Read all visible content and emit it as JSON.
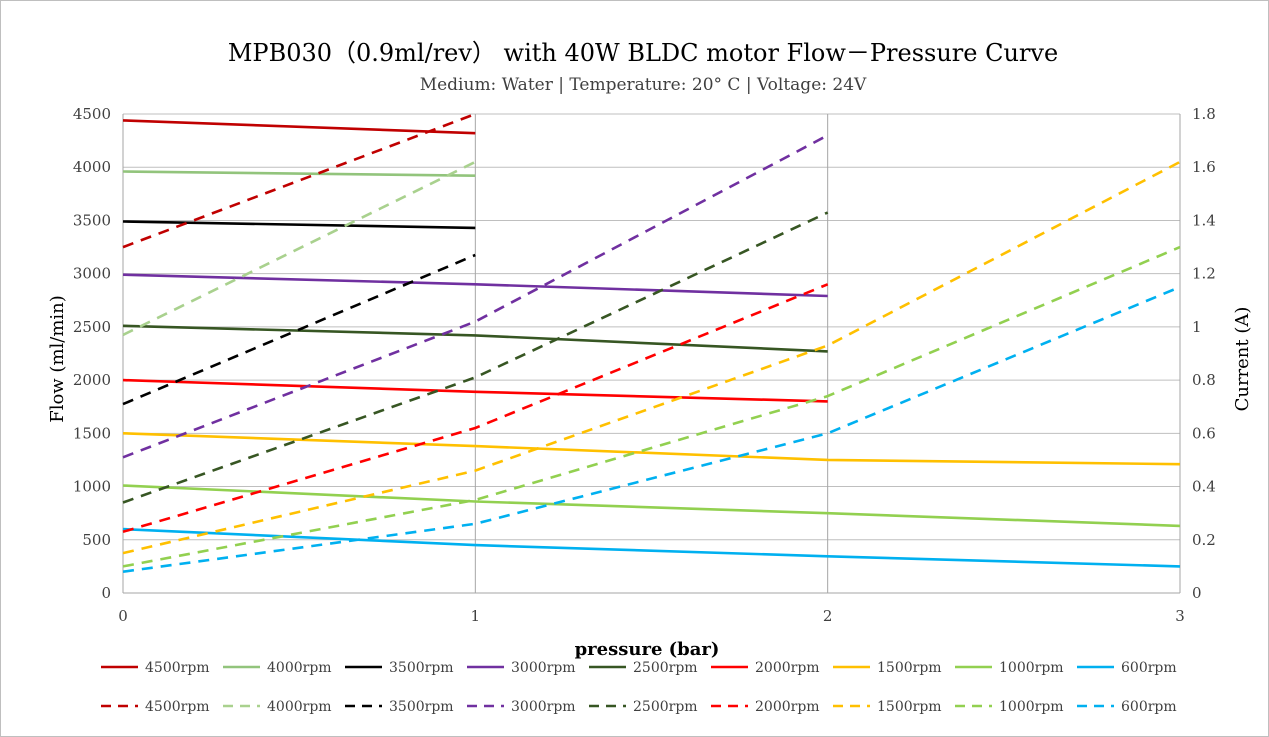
{
  "chart_data": {
    "type": "line",
    "title": "MPB030（0.9ml/rev） with 40W BLDC motor Flow－Pressure Curve",
    "subtitle": "Medium: Water | Temperature: 20° C | Voltage: 24V",
    "xlabel": "pressure (bar)",
    "ylabel": "Flow (ml/min)",
    "y2label": "Current (A)",
    "xlim": [
      0,
      3
    ],
    "ylim": [
      0,
      4500
    ],
    "y2lim": [
      0,
      1.8
    ],
    "x_ticks": [
      "0",
      "1",
      "2",
      "3"
    ],
    "y_ticks": [
      "0",
      "500",
      "1000",
      "1500",
      "2000",
      "2500",
      "3000",
      "3500",
      "4000",
      "4500"
    ],
    "y2_ticks": [
      "0",
      "0.2",
      "0.4",
      "0.6",
      "0.8",
      "1",
      "1.2",
      "1.4",
      "1.6",
      "1.8"
    ],
    "grid": true,
    "legend_position": "bottom",
    "series": [
      {
        "name": "4500rpm",
        "axis": "left",
        "style": "solid",
        "color": "#C00000",
        "x": [
          0,
          1
        ],
        "y": [
          4440,
          4320
        ]
      },
      {
        "name": "4000rpm",
        "axis": "left",
        "style": "solid",
        "color": "#92C47C",
        "x": [
          0,
          1
        ],
        "y": [
          3960,
          3920
        ]
      },
      {
        "name": "3500rpm",
        "axis": "left",
        "style": "solid",
        "color": "#000000",
        "x": [
          0,
          1
        ],
        "y": [
          3490,
          3430
        ]
      },
      {
        "name": "3000rpm",
        "axis": "left",
        "style": "solid",
        "color": "#7030A0",
        "x": [
          0,
          1,
          2
        ],
        "y": [
          2990,
          2900,
          2790
        ]
      },
      {
        "name": "2500rpm",
        "axis": "left",
        "style": "solid",
        "color": "#375623",
        "x": [
          0,
          1,
          2
        ],
        "y": [
          2510,
          2420,
          2270
        ]
      },
      {
        "name": "2000rpm",
        "axis": "left",
        "style": "solid",
        "color": "#FF0000",
        "x": [
          0,
          1,
          2
        ],
        "y": [
          2000,
          1890,
          1800
        ]
      },
      {
        "name": "1500rpm",
        "axis": "left",
        "style": "solid",
        "color": "#FFC000",
        "x": [
          0,
          1,
          2,
          3
        ],
        "y": [
          1500,
          1380,
          1250,
          1210
        ]
      },
      {
        "name": "1000rpm",
        "axis": "left",
        "style": "solid",
        "color": "#92D050",
        "x": [
          0,
          1,
          2,
          3
        ],
        "y": [
          1010,
          860,
          750,
          630
        ]
      },
      {
        "name": "600rpm",
        "axis": "left",
        "style": "solid",
        "color": "#00B0F0",
        "x": [
          0,
          1,
          2,
          3
        ],
        "y": [
          600,
          450,
          345,
          250
        ]
      },
      {
        "name": "4500rpm",
        "axis": "right",
        "style": "dashed",
        "color": "#C00000",
        "x": [
          0,
          1
        ],
        "y": [
          1.3,
          1.8
        ]
      },
      {
        "name": "4000rpm",
        "axis": "right",
        "style": "dashed",
        "color": "#A9D18E",
        "x": [
          0,
          1
        ],
        "y": [
          0.97,
          1.62
        ]
      },
      {
        "name": "3500rpm",
        "axis": "right",
        "style": "dashed",
        "color": "#000000",
        "x": [
          0,
          1
        ],
        "y": [
          0.71,
          1.27
        ]
      },
      {
        "name": "3000rpm",
        "axis": "right",
        "style": "dashed",
        "color": "#7030A0",
        "x": [
          0,
          1,
          2
        ],
        "y": [
          0.51,
          1.02,
          1.72
        ]
      },
      {
        "name": "2500rpm",
        "axis": "right",
        "style": "dashed",
        "color": "#375623",
        "x": [
          0,
          1,
          2
        ],
        "y": [
          0.34,
          0.81,
          1.43
        ]
      },
      {
        "name": "2000rpm",
        "axis": "right",
        "style": "dashed",
        "color": "#FF0000",
        "x": [
          0,
          1,
          2
        ],
        "y": [
          0.23,
          0.62,
          1.16
        ]
      },
      {
        "name": "1500rpm",
        "axis": "right",
        "style": "dashed",
        "color": "#FFC000",
        "x": [
          0,
          1,
          2,
          3
        ],
        "y": [
          0.15,
          0.46,
          0.93,
          1.62
        ]
      },
      {
        "name": "1000rpm",
        "axis": "right",
        "style": "dashed",
        "color": "#92D050",
        "x": [
          0,
          1,
          2,
          3
        ],
        "y": [
          0.1,
          0.35,
          0.74,
          1.3
        ]
      },
      {
        "name": "600rpm",
        "axis": "right",
        "style": "dashed",
        "color": "#00B0F0",
        "x": [
          0,
          1,
          2,
          3
        ],
        "y": [
          0.08,
          0.26,
          0.6,
          1.15
        ]
      }
    ]
  }
}
